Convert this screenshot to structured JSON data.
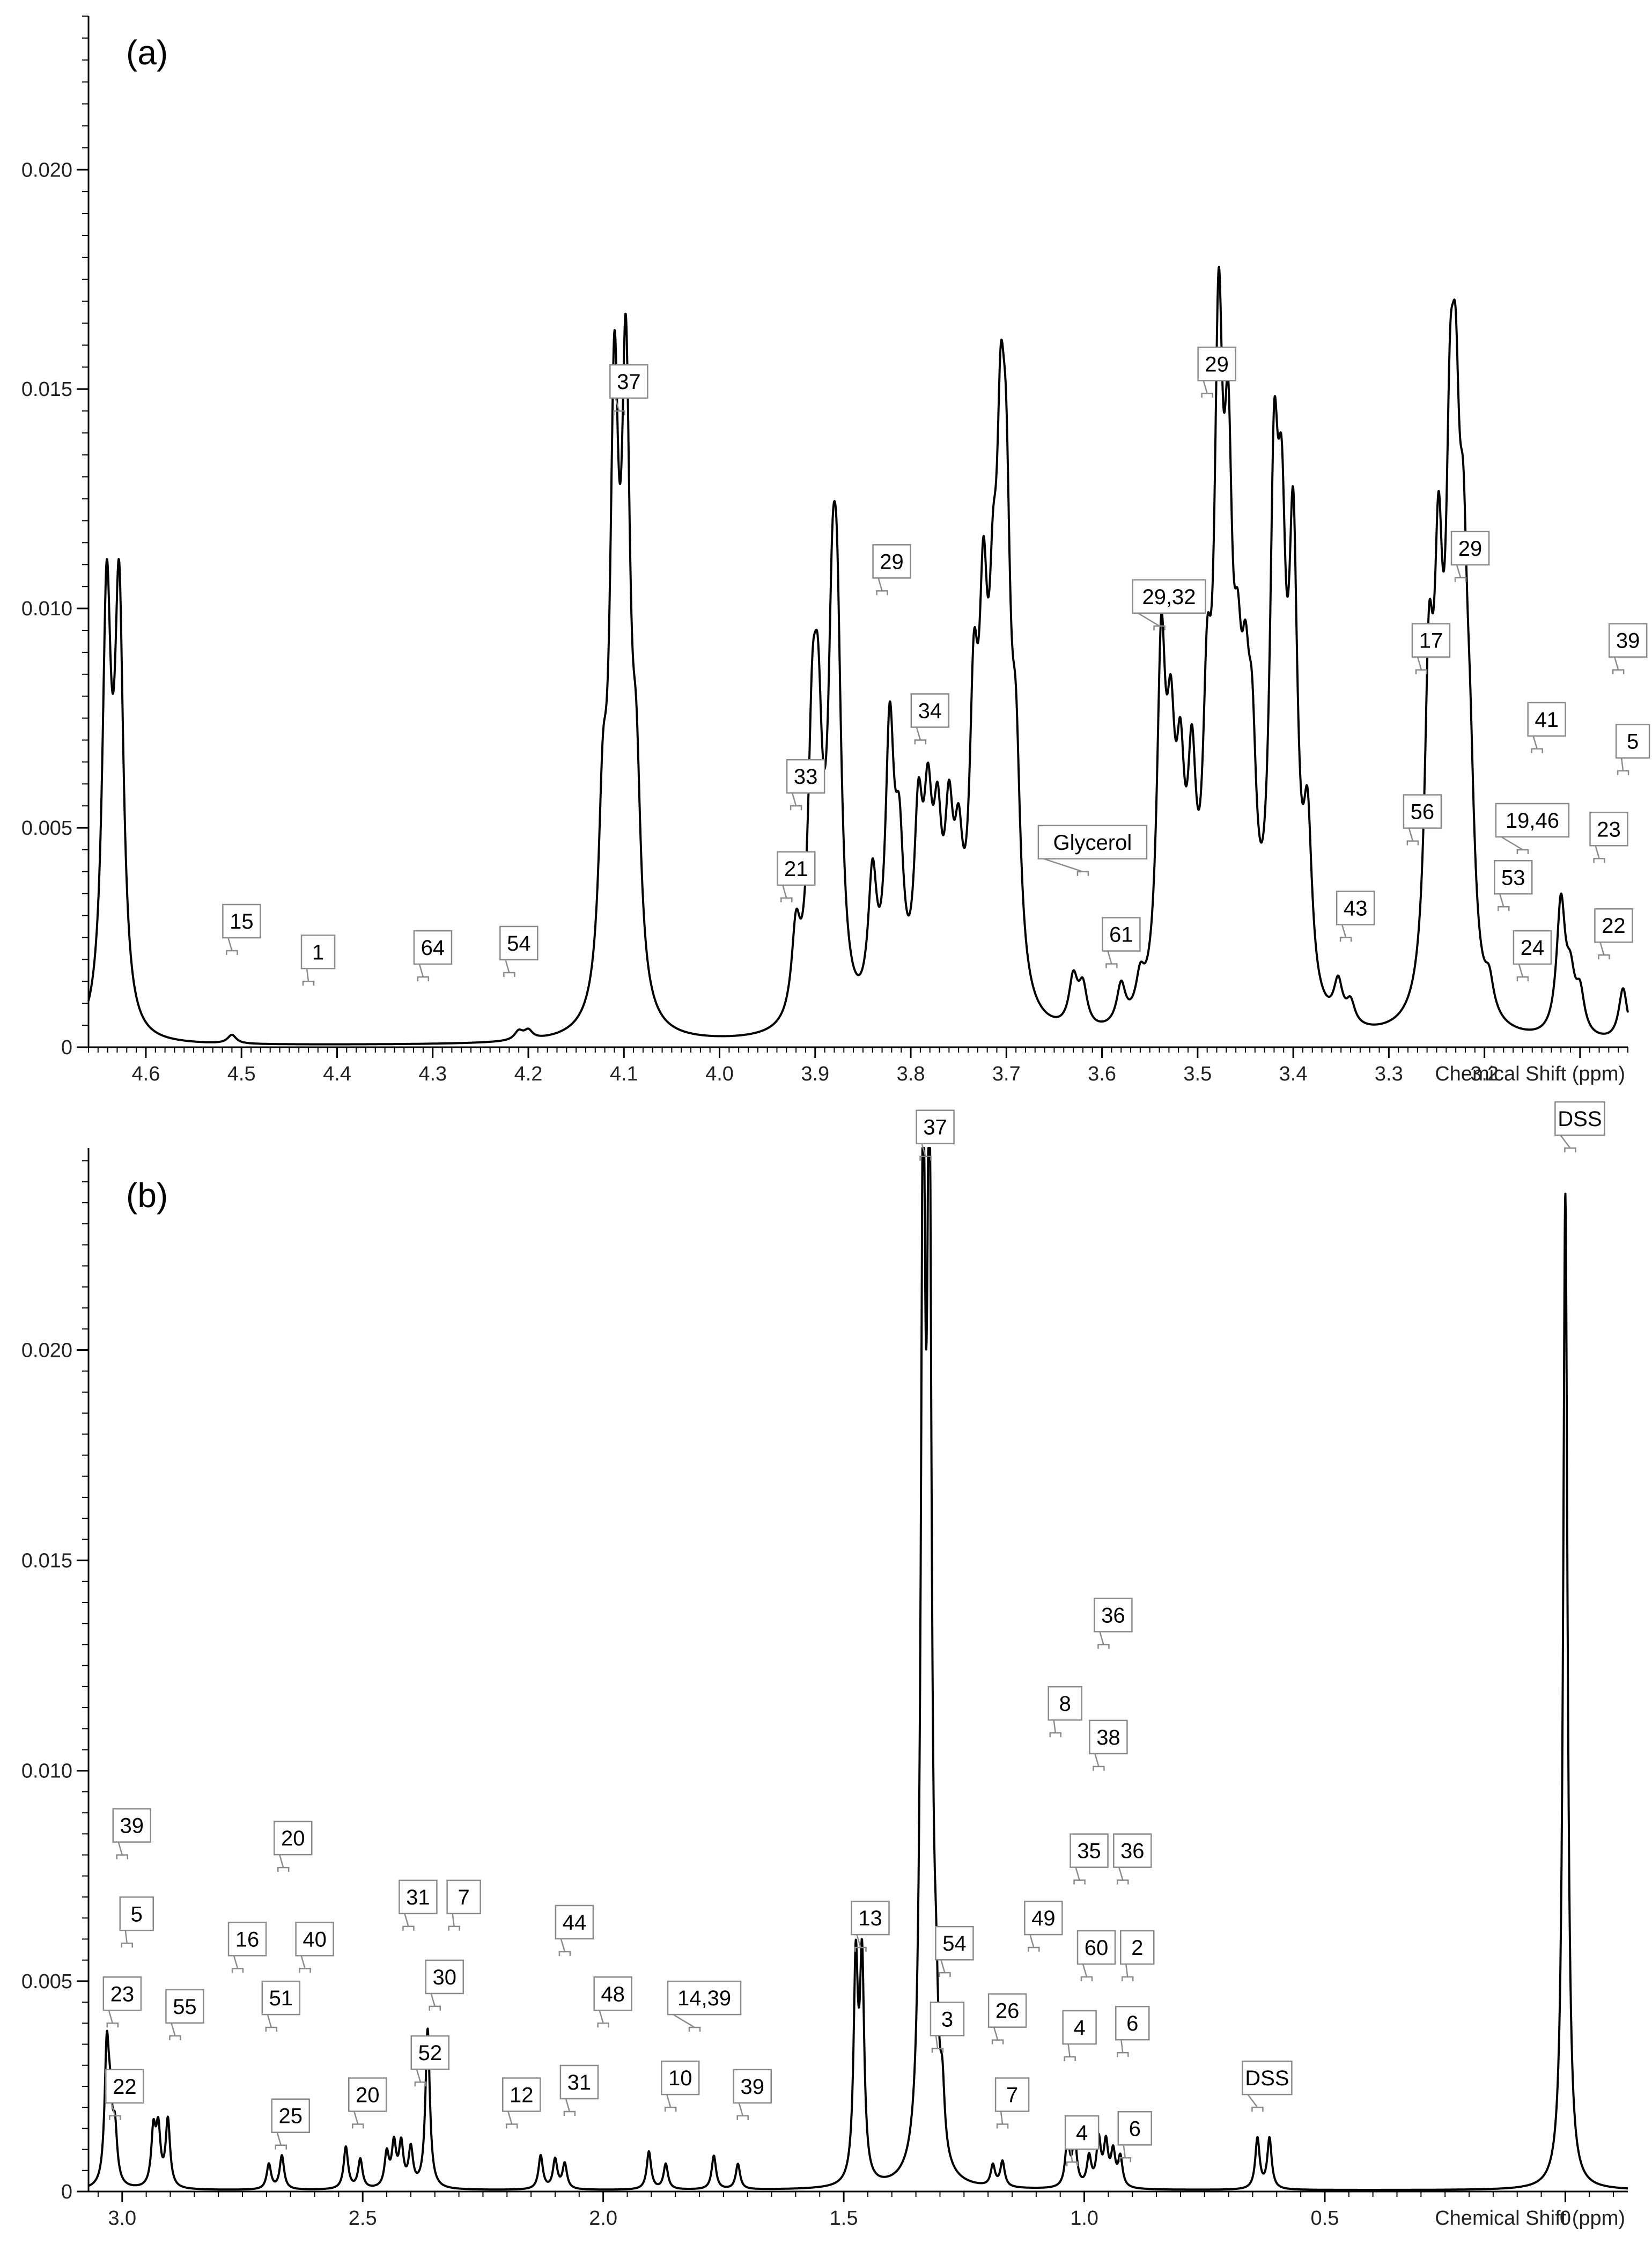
{
  "chart_data": [
    {
      "panel": "(a)",
      "type": "line",
      "xlabel": "Chemical Shift (ppm)",
      "ylabel": "",
      "x_reversed": true,
      "xlim": [
        4.66,
        3.05
      ],
      "ylim": [
        0,
        0.0235
      ],
      "x_ticks": [
        "4.6",
        "4.5",
        "4.4",
        "4.3",
        "4.2",
        "4.1",
        "4.0",
        "3.9",
        "3.8",
        "3.7",
        "3.6",
        "3.5",
        "3.4",
        "3.3",
        "3.2"
      ],
      "y_ticks": [
        "0",
        "0.005",
        "0.010",
        "0.015",
        "0.020"
      ],
      "peaks": [
        {
          "x": 4.641,
          "y": 0.0096
        },
        {
          "x": 4.628,
          "y": 0.0096
        },
        {
          "x": 4.51,
          "y": 0.0002
        },
        {
          "x": 4.21,
          "y": 0.0002
        },
        {
          "x": 4.2,
          "y": 0.0002
        },
        {
          "x": 4.122,
          "y": 0.004
        },
        {
          "x": 4.11,
          "y": 0.013
        },
        {
          "x": 4.098,
          "y": 0.0133
        },
        {
          "x": 4.087,
          "y": 0.0043
        },
        {
          "x": 3.92,
          "y": 0.0019
        },
        {
          "x": 3.903,
          "y": 0.0054
        },
        {
          "x": 3.897,
          "y": 0.0052
        },
        {
          "x": 3.882,
          "y": 0.0068
        },
        {
          "x": 3.877,
          "y": 0.0069
        },
        {
          "x": 3.84,
          "y": 0.003
        },
        {
          "x": 3.822,
          "y": 0.0062
        },
        {
          "x": 3.812,
          "y": 0.0033
        },
        {
          "x": 3.792,
          "y": 0.004
        },
        {
          "x": 3.782,
          "y": 0.0038
        },
        {
          "x": 3.772,
          "y": 0.0034
        },
        {
          "x": 3.76,
          "y": 0.0036
        },
        {
          "x": 3.75,
          "y": 0.0028
        },
        {
          "x": 3.734,
          "y": 0.006
        },
        {
          "x": 3.724,
          "y": 0.0072
        },
        {
          "x": 3.714,
          "y": 0.0056
        },
        {
          "x": 3.706,
          "y": 0.0089
        },
        {
          "x": 3.7,
          "y": 0.008
        },
        {
          "x": 3.69,
          "y": 0.0046
        },
        {
          "x": 3.63,
          "y": 0.0011
        },
        {
          "x": 3.62,
          "y": 0.0009
        },
        {
          "x": 3.58,
          "y": 0.0009
        },
        {
          "x": 3.56,
          "y": 0.0008
        },
        {
          "x": 3.538,
          "y": 0.0078
        },
        {
          "x": 3.528,
          "y": 0.0048
        },
        {
          "x": 3.518,
          "y": 0.0042
        },
        {
          "x": 3.506,
          "y": 0.0045
        },
        {
          "x": 3.49,
          "y": 0.0055
        },
        {
          "x": 3.478,
          "y": 0.0133
        },
        {
          "x": 3.468,
          "y": 0.0096
        },
        {
          "x": 3.458,
          "y": 0.0045
        },
        {
          "x": 3.45,
          "y": 0.0044
        },
        {
          "x": 3.443,
          "y": 0.0042
        },
        {
          "x": 3.42,
          "y": 0.0104
        },
        {
          "x": 3.412,
          "y": 0.008
        },
        {
          "x": 3.4,
          "y": 0.0097
        },
        {
          "x": 3.385,
          "y": 0.0038
        },
        {
          "x": 3.353,
          "y": 0.0009
        },
        {
          "x": 3.34,
          "y": 0.0005
        },
        {
          "x": 3.258,
          "y": 0.0069
        },
        {
          "x": 3.248,
          "y": 0.0082
        },
        {
          "x": 3.236,
          "y": 0.0091
        },
        {
          "x": 3.23,
          "y": 0.0088
        },
        {
          "x": 3.222,
          "y": 0.0072
        },
        {
          "x": 3.215,
          "y": 0.0035
        },
        {
          "x": 3.195,
          "y": 0.0007
        },
        {
          "x": 3.12,
          "y": 0.003
        },
        {
          "x": 3.11,
          "y": 0.0011
        },
        {
          "x": 3.1,
          "y": 0.0009
        },
        {
          "x": 3.055,
          "y": 0.0012
        }
      ],
      "annotations": [
        {
          "label": "15",
          "x": 4.51,
          "y": 0.0022
        },
        {
          "label": "1",
          "x": 4.43,
          "y": 0.0015
        },
        {
          "label": "64",
          "x": 4.31,
          "y": 0.0016
        },
        {
          "label": "54",
          "x": 4.22,
          "y": 0.0017
        },
        {
          "label": "37",
          "x": 4.105,
          "y": 0.0145
        },
        {
          "label": "21",
          "x": 3.93,
          "y": 0.0034
        },
        {
          "label": "33",
          "x": 3.92,
          "y": 0.0055
        },
        {
          "label": "29",
          "x": 3.83,
          "y": 0.0104
        },
        {
          "label": "34",
          "x": 3.79,
          "y": 0.007
        },
        {
          "label": "29,32",
          "x": 3.54,
          "y": 0.0096
        },
        {
          "label": "Glycerol",
          "x": 3.62,
          "y": 0.004
        },
        {
          "label": "61",
          "x": 3.59,
          "y": 0.0019
        },
        {
          "label": "29",
          "x": 3.49,
          "y": 0.0149
        },
        {
          "label": "17",
          "x": 3.266,
          "y": 0.0086
        },
        {
          "label": "29",
          "x": 3.225,
          "y": 0.0107
        },
        {
          "label": "56",
          "x": 3.275,
          "y": 0.0047
        },
        {
          "label": "53",
          "x": 3.18,
          "y": 0.0032
        },
        {
          "label": "19,46",
          "x": 3.16,
          "y": 0.0045
        },
        {
          "label": "41",
          "x": 3.145,
          "y": 0.0068
        },
        {
          "label": "43",
          "x": 3.345,
          "y": 0.0025
        },
        {
          "label": "24",
          "x": 3.16,
          "y": 0.0016
        },
        {
          "label": "39",
          "x": 3.06,
          "y": 0.0086
        },
        {
          "label": "5",
          "x": 3.055,
          "y": 0.0063
        },
        {
          "label": "23",
          "x": 3.08,
          "y": 0.0043
        },
        {
          "label": "22",
          "x": 3.075,
          "y": 0.0021
        }
      ]
    },
    {
      "panel": "(b)",
      "type": "line",
      "xlabel": "Chemical Shift (ppm)",
      "ylabel": "",
      "x_reversed": true,
      "xlim": [
        3.07,
        -0.13
      ],
      "ylim": [
        0,
        0.0248
      ],
      "x_ticks": [
        "3.0",
        "2.5",
        "2.0",
        "1.5",
        "1.0",
        "0.5",
        "0"
      ],
      "y_ticks": [
        "0",
        "0.005",
        "0.010",
        "0.015",
        "0.020"
      ],
      "peaks": [
        {
          "x": 3.032,
          "y": 0.0031
        },
        {
          "x": 3.025,
          "y": 0.0014
        },
        {
          "x": 3.015,
          "y": 0.0012
        },
        {
          "x": 2.935,
          "y": 0.0013
        },
        {
          "x": 2.925,
          "y": 0.0013
        },
        {
          "x": 2.905,
          "y": 0.0016
        },
        {
          "x": 2.695,
          "y": 0.0006
        },
        {
          "x": 2.668,
          "y": 0.0008
        },
        {
          "x": 2.535,
          "y": 0.001
        },
        {
          "x": 2.505,
          "y": 0.0007
        },
        {
          "x": 2.45,
          "y": 0.0008
        },
        {
          "x": 2.435,
          "y": 0.001
        },
        {
          "x": 2.42,
          "y": 0.001
        },
        {
          "x": 2.4,
          "y": 0.0009
        },
        {
          "x": 2.365,
          "y": 0.0038
        },
        {
          "x": 2.13,
          "y": 0.0008
        },
        {
          "x": 2.1,
          "y": 0.0007
        },
        {
          "x": 2.08,
          "y": 0.0006
        },
        {
          "x": 1.905,
          "y": 0.0009
        },
        {
          "x": 1.87,
          "y": 0.0006
        },
        {
          "x": 1.77,
          "y": 0.0008
        },
        {
          "x": 1.72,
          "y": 0.0006
        },
        {
          "x": 1.475,
          "y": 0.0051
        },
        {
          "x": 1.462,
          "y": 0.0051
        },
        {
          "x": 1.335,
          "y": 0.0237
        },
        {
          "x": 1.322,
          "y": 0.0237
        },
        {
          "x": 1.308,
          "y": 0.0022
        },
        {
          "x": 1.295,
          "y": 0.0014
        },
        {
          "x": 1.19,
          "y": 0.0005
        },
        {
          "x": 1.17,
          "y": 0.0006
        },
        {
          "x": 1.035,
          "y": 0.0011
        },
        {
          "x": 1.02,
          "y": 0.0011
        },
        {
          "x": 0.99,
          "y": 0.0007
        },
        {
          "x": 0.97,
          "y": 0.0011
        },
        {
          "x": 0.955,
          "y": 0.001
        },
        {
          "x": 0.94,
          "y": 0.0008
        },
        {
          "x": 0.925,
          "y": 0.0007
        },
        {
          "x": 0.64,
          "y": 0.0012
        },
        {
          "x": 0.615,
          "y": 0.0012
        },
        {
          "x": 0.0,
          "y": 0.0237
        }
      ],
      "annotations": [
        {
          "label": "39",
          "x": 3.0,
          "y": 0.008
        },
        {
          "label": "5",
          "x": 2.99,
          "y": 0.0059
        },
        {
          "label": "23",
          "x": 3.02,
          "y": 0.004
        },
        {
          "label": "22",
          "x": 3.015,
          "y": 0.0018
        },
        {
          "label": "55",
          "x": 2.89,
          "y": 0.0037
        },
        {
          "label": "16",
          "x": 2.76,
          "y": 0.0053
        },
        {
          "label": "51",
          "x": 2.69,
          "y": 0.0039
        },
        {
          "label": "20",
          "x": 2.665,
          "y": 0.0077
        },
        {
          "label": "40",
          "x": 2.62,
          "y": 0.0053
        },
        {
          "label": "25",
          "x": 2.67,
          "y": 0.0011
        },
        {
          "label": "20",
          "x": 2.51,
          "y": 0.0016
        },
        {
          "label": "31",
          "x": 2.405,
          "y": 0.0063
        },
        {
          "label": "7",
          "x": 2.31,
          "y": 0.0063
        },
        {
          "label": "30",
          "x": 2.35,
          "y": 0.0044
        },
        {
          "label": "52",
          "x": 2.38,
          "y": 0.0026
        },
        {
          "label": "12",
          "x": 2.19,
          "y": 0.0016
        },
        {
          "label": "44",
          "x": 2.08,
          "y": 0.0057
        },
        {
          "label": "31",
          "x": 2.07,
          "y": 0.0019
        },
        {
          "label": "48",
          "x": 2.0,
          "y": 0.004
        },
        {
          "label": "10",
          "x": 1.86,
          "y": 0.002
        },
        {
          "label": "14,39",
          "x": 1.81,
          "y": 0.0039
        },
        {
          "label": "39",
          "x": 1.71,
          "y": 0.0018
        },
        {
          "label": "13",
          "x": 1.465,
          "y": 0.0058
        },
        {
          "label": "37",
          "x": 1.33,
          "y": 0.0246
        },
        {
          "label": "54",
          "x": 1.29,
          "y": 0.0052
        },
        {
          "label": "3",
          "x": 1.305,
          "y": 0.0034
        },
        {
          "label": "26",
          "x": 1.18,
          "y": 0.0036
        },
        {
          "label": "7",
          "x": 1.17,
          "y": 0.0016
        },
        {
          "label": "49",
          "x": 1.105,
          "y": 0.0058
        },
        {
          "label": "8",
          "x": 1.06,
          "y": 0.0109
        },
        {
          "label": "36",
          "x": 0.96,
          "y": 0.013
        },
        {
          "label": "38",
          "x": 0.97,
          "y": 0.0101
        },
        {
          "label": "35",
          "x": 1.01,
          "y": 0.0074
        },
        {
          "label": "36",
          "x": 0.92,
          "y": 0.0074
        },
        {
          "label": "60",
          "x": 0.995,
          "y": 0.0051
        },
        {
          "label": "2",
          "x": 0.91,
          "y": 0.0051
        },
        {
          "label": "4",
          "x": 1.03,
          "y": 0.0032
        },
        {
          "label": "6",
          "x": 0.92,
          "y": 0.0033
        },
        {
          "label": "4",
          "x": 1.025,
          "y": 0.0007
        },
        {
          "label": "6",
          "x": 0.915,
          "y": 0.0008
        },
        {
          "label": "DSS",
          "x": 0.64,
          "y": 0.002
        },
        {
          "label": "DSS",
          "x": -0.01,
          "y": 0.0248
        }
      ]
    }
  ]
}
